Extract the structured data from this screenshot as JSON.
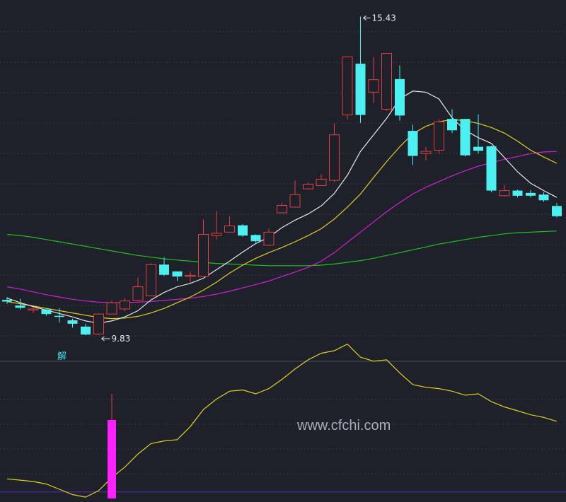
{
  "chart_data": {
    "type": "candlestick",
    "colors": {
      "background": "#1f212a",
      "up": "#e04040",
      "down": "#4df0f0",
      "ma_fast": "#e8e8e8",
      "ma_mid": "#e0d020",
      "ma_slow": "#d020d0",
      "ma_long": "#20c020",
      "indicator_line": "#e0d020",
      "indicator_bar": "#ff20ff",
      "indicator_stick": "#e04040",
      "baseline": "#5030c0",
      "grid": "#3a3d4a",
      "divider": "#4a4d5a"
    },
    "price_range": [
      9.37,
      15.72
    ],
    "candles": [
      {
        "o": 10.45,
        "c": 10.42,
        "h": 10.5,
        "l": 10.38
      },
      {
        "o": 10.35,
        "c": 10.31,
        "h": 10.47,
        "l": 10.28
      },
      {
        "o": 10.28,
        "c": 10.29,
        "h": 10.33,
        "l": 10.22
      },
      {
        "o": 10.28,
        "c": 10.2,
        "h": 10.3,
        "l": 10.17
      },
      {
        "o": 10.17,
        "c": 10.15,
        "h": 10.3,
        "l": 10.05
      },
      {
        "o": 10.09,
        "c": 10.03,
        "h": 10.12,
        "l": 9.96
      },
      {
        "o": 9.98,
        "c": 9.84,
        "h": 10.03,
        "l": 9.83
      },
      {
        "o": 9.85,
        "c": 10.2,
        "h": 10.22,
        "l": 9.83
      },
      {
        "o": 10.2,
        "c": 10.4,
        "h": 10.44,
        "l": 10.19
      },
      {
        "o": 10.29,
        "c": 10.43,
        "h": 10.48,
        "l": 10.25
      },
      {
        "o": 10.44,
        "c": 10.68,
        "h": 10.84,
        "l": 10.42
      },
      {
        "o": 10.52,
        "c": 11.07,
        "h": 11.09,
        "l": 10.51
      },
      {
        "o": 11.07,
        "c": 10.89,
        "h": 11.2,
        "l": 10.87
      },
      {
        "o": 10.95,
        "c": 10.86,
        "h": 10.95,
        "l": 10.78
      },
      {
        "o": 10.86,
        "c": 10.88,
        "h": 10.95,
        "l": 10.75
      },
      {
        "o": 10.86,
        "c": 11.6,
        "h": 11.86,
        "l": 10.86
      },
      {
        "o": 11.58,
        "c": 11.62,
        "h": 12.01,
        "l": 11.51
      },
      {
        "o": 11.64,
        "c": 11.75,
        "h": 11.92,
        "l": 11.63
      },
      {
        "o": 11.76,
        "c": 11.58,
        "h": 11.78,
        "l": 11.56
      },
      {
        "o": 11.59,
        "c": 11.48,
        "h": 11.6,
        "l": 11.46
      },
      {
        "o": 11.41,
        "c": 11.64,
        "h": 11.7,
        "l": 11.4
      },
      {
        "o": 11.98,
        "c": 12.11,
        "h": 12.16,
        "l": 11.97
      },
      {
        "o": 12.08,
        "c": 12.3,
        "h": 12.55,
        "l": 12.07
      },
      {
        "o": 12.4,
        "c": 12.48,
        "h": 12.52,
        "l": 12.39
      },
      {
        "o": 12.46,
        "c": 12.57,
        "h": 12.66,
        "l": 12.45
      },
      {
        "o": 12.55,
        "c": 13.35,
        "h": 13.55,
        "l": 12.52
      },
      {
        "o": 13.7,
        "c": 14.72,
        "h": 14.73,
        "l": 13.62
      },
      {
        "o": 14.6,
        "c": 13.7,
        "h": 15.43,
        "l": 13.56
      },
      {
        "o": 14.1,
        "c": 14.32,
        "h": 14.72,
        "l": 13.91
      },
      {
        "o": 13.8,
        "c": 14.78,
        "h": 14.79,
        "l": 13.77
      },
      {
        "o": 14.33,
        "c": 13.69,
        "h": 14.57,
        "l": 13.6
      },
      {
        "o": 13.42,
        "c": 12.98,
        "h": 13.53,
        "l": 12.82
      },
      {
        "o": 13.02,
        "c": 13.06,
        "h": 13.14,
        "l": 12.9
      },
      {
        "o": 13.08,
        "c": 13.58,
        "h": 13.62,
        "l": 13.02
      },
      {
        "o": 13.63,
        "c": 13.43,
        "h": 13.8,
        "l": 13.38
      },
      {
        "o": 13.63,
        "c": 12.99,
        "h": 13.63,
        "l": 12.97
      },
      {
        "o": 13.14,
        "c": 13.07,
        "h": 13.71,
        "l": 13.02
      },
      {
        "o": 13.15,
        "c": 12.37,
        "h": 13.16,
        "l": 12.34
      },
      {
        "o": 12.28,
        "c": 12.37,
        "h": 12.47,
        "l": 12.26
      },
      {
        "o": 12.37,
        "c": 12.28,
        "h": 12.39,
        "l": 12.25
      },
      {
        "o": 12.33,
        "c": 12.28,
        "h": 12.38,
        "l": 12.25
      },
      {
        "o": 12.3,
        "c": 12.2,
        "h": 12.34,
        "l": 12.17
      },
      {
        "o": 12.1,
        "c": 11.92,
        "h": 12.15,
        "l": 11.9
      }
    ],
    "ma_fast": [
      10.48,
      10.4,
      10.33,
      10.27,
      10.21,
      10.15,
      10.08,
      10.04,
      10.08,
      10.15,
      10.26,
      10.45,
      10.58,
      10.68,
      10.74,
      10.83,
      10.98,
      11.13,
      11.29,
      11.44,
      11.55,
      11.72,
      11.85,
      11.96,
      12.1,
      12.32,
      12.64,
      13.06,
      13.35,
      13.64,
      13.98,
      14.12,
      14.1,
      13.98,
      13.65,
      13.43,
      13.3,
      13.2,
      12.95,
      12.7,
      12.5,
      12.37,
      12.25
    ],
    "ma_mid": [
      10.42,
      10.38,
      10.34,
      10.3,
      10.26,
      10.22,
      10.18,
      10.14,
      10.12,
      10.13,
      10.16,
      10.22,
      10.3,
      10.4,
      10.5,
      10.62,
      10.76,
      10.92,
      11.06,
      11.18,
      11.28,
      11.37,
      11.47,
      11.58,
      11.7,
      11.87,
      12.08,
      12.31,
      12.6,
      12.88,
      13.14,
      13.37,
      13.5,
      13.58,
      13.62,
      13.6,
      13.55,
      13.48,
      13.38,
      13.24,
      13.08,
      12.96,
      12.85
    ],
    "ma_slow": [
      10.68,
      10.64,
      10.59,
      10.54,
      10.5,
      10.46,
      10.43,
      10.41,
      10.4,
      10.4,
      10.41,
      10.42,
      10.44,
      10.46,
      10.48,
      10.51,
      10.55,
      10.6,
      10.66,
      10.72,
      10.78,
      10.86,
      10.94,
      11.02,
      11.13,
      11.28,
      11.46,
      11.64,
      11.82,
      12.0,
      12.16,
      12.31,
      12.43,
      12.53,
      12.63,
      12.72,
      12.8,
      12.86,
      12.92,
      12.97,
      13.02,
      13.05,
      13.06
    ],
    "ma_long": [
      11.6,
      11.58,
      11.55,
      11.51,
      11.47,
      11.43,
      11.39,
      11.35,
      11.31,
      11.27,
      11.23,
      11.2,
      11.17,
      11.15,
      11.13,
      11.11,
      11.09,
      11.08,
      11.07,
      11.06,
      11.05,
      11.05,
      11.05,
      11.05,
      11.06,
      11.08,
      11.11,
      11.14,
      11.18,
      11.23,
      11.28,
      11.33,
      11.38,
      11.43,
      11.47,
      11.51,
      11.55,
      11.58,
      11.61,
      11.63,
      11.64,
      11.65,
      11.66
    ],
    "annotations": [
      {
        "label": "15.43",
        "index": 27,
        "price": 15.43
      },
      {
        "label": "9.83",
        "index": 7,
        "price": 9.83
      }
    ],
    "marker": {
      "label": "解",
      "index": 4
    },
    "indicator": {
      "range": [
        0,
        100
      ],
      "baseline": 5,
      "line": [
        15,
        14,
        13,
        11,
        7,
        3,
        1,
        6,
        16,
        24,
        34,
        42,
        44,
        45,
        55,
        68,
        76,
        82,
        83,
        80,
        84,
        91,
        99,
        106,
        111,
        113,
        118,
        108,
        105,
        106,
        96,
        87,
        85,
        84,
        82,
        79,
        80,
        74,
        70,
        67,
        64,
        62,
        59
      ],
      "bar": {
        "index": 8,
        "value": 60,
        "stick_top": 80
      }
    },
    "watermark": "www.cfchi.com"
  }
}
